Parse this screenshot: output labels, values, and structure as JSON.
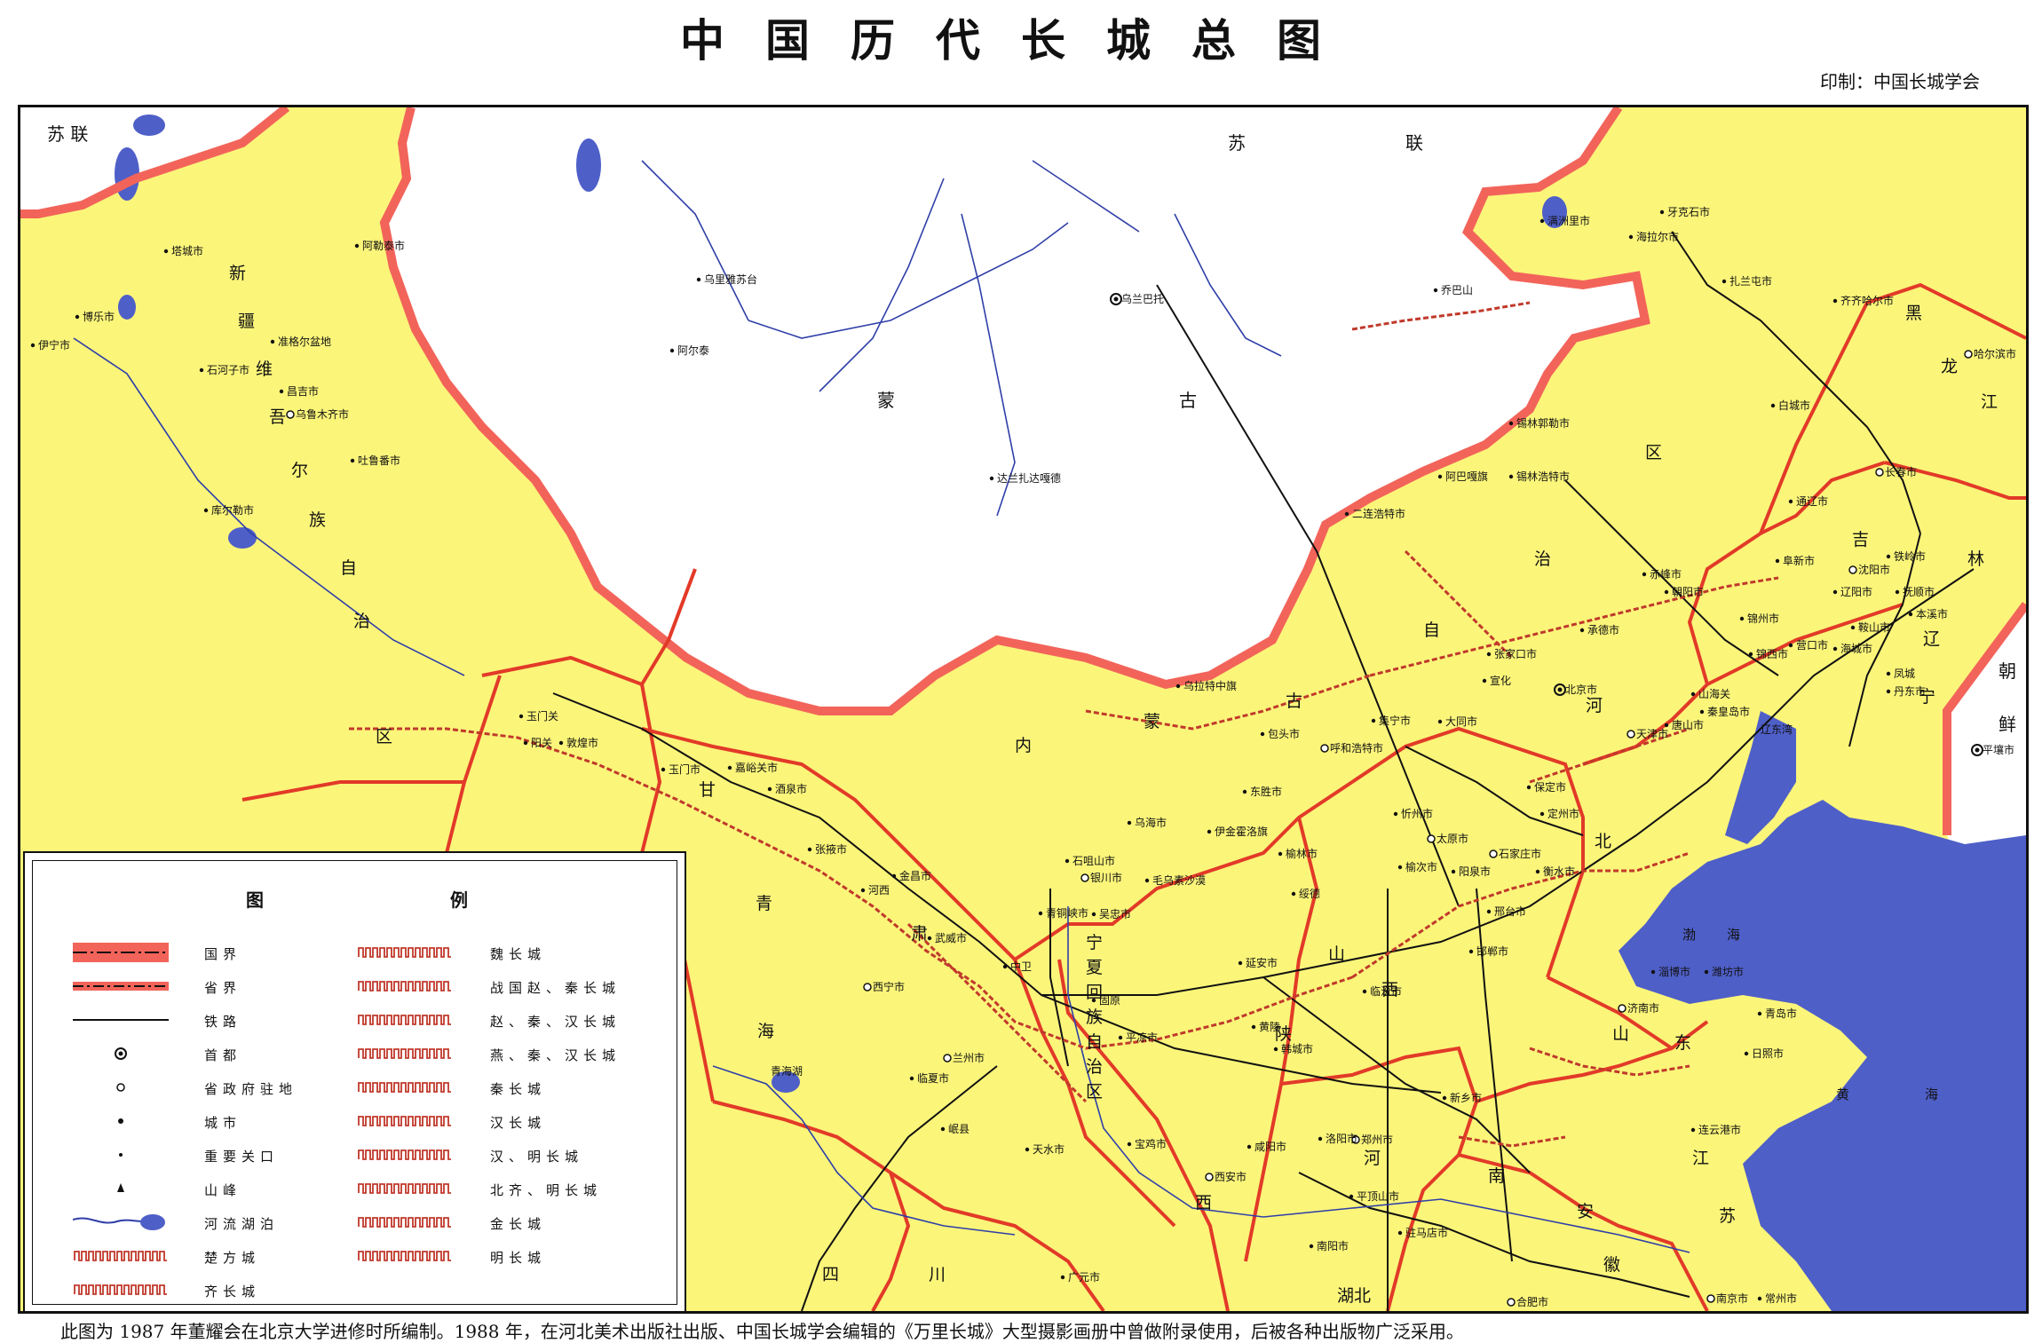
{
  "title": "中国历代长城总图",
  "publisher": "印制：中国长城学会",
  "caption": "此图为 1987 年董耀会在北京大学进修时所编制。1988 年，在河北美术出版社出版、中国长城学会编辑的《万里长城》大型摄影画册中曾做附录使用，后被各种出版物广泛采用。",
  "colors": {
    "china_land": "#fbf57a",
    "foreign_land": "#ffffff",
    "sea": "#4f5fc8",
    "national_border": "#f2645a",
    "province_border": "#e23a28",
    "wall": "#c0392b",
    "rail": "#111111",
    "river": "#2f3fa8"
  },
  "countries": [
    {
      "id": "ussr-west",
      "text": "苏 联"
    },
    {
      "id": "ussr-east-1",
      "text": "苏"
    },
    {
      "id": "ussr-east-2",
      "text": "联"
    },
    {
      "id": "mongolia-1",
      "text": "蒙"
    },
    {
      "id": "mongolia-2",
      "text": "古"
    },
    {
      "id": "korea-1",
      "text": "朝"
    },
    {
      "id": "korea-2",
      "text": "鲜"
    }
  ],
  "regions": [
    {
      "id": "xinjiang-1",
      "text": "新"
    },
    {
      "id": "xinjiang-2",
      "text": "疆"
    },
    {
      "id": "xinjiang-3",
      "text": "维"
    },
    {
      "id": "xinjiang-4",
      "text": "吾"
    },
    {
      "id": "xinjiang-5",
      "text": "尔"
    },
    {
      "id": "xinjiang-6",
      "text": "族"
    },
    {
      "id": "xinjiang-7",
      "text": "自"
    },
    {
      "id": "xinjiang-8",
      "text": "治"
    },
    {
      "id": "xinjiang-9",
      "text": "区"
    },
    {
      "id": "neimeng-1",
      "text": "内"
    },
    {
      "id": "neimeng-2",
      "text": "蒙"
    },
    {
      "id": "neimeng-3",
      "text": "古"
    },
    {
      "id": "neimeng-4",
      "text": "自"
    },
    {
      "id": "neimeng-5",
      "text": "治"
    },
    {
      "id": "neimeng-6",
      "text": "区"
    },
    {
      "id": "gansu-1",
      "text": "甘"
    },
    {
      "id": "gansu-2",
      "text": "肃"
    },
    {
      "id": "qinghai-1",
      "text": "青"
    },
    {
      "id": "qinghai-2",
      "text": "海"
    },
    {
      "id": "ningxia-1",
      "text": "宁"
    },
    {
      "id": "ningxia-2",
      "text": "夏"
    },
    {
      "id": "ningxia-3",
      "text": "回"
    },
    {
      "id": "ningxia-4",
      "text": "族"
    },
    {
      "id": "ningxia-5",
      "text": "自"
    },
    {
      "id": "ningxia-6",
      "text": "治"
    },
    {
      "id": "ningxia-7",
      "text": "区"
    },
    {
      "id": "shaanxi-1",
      "text": "陕"
    },
    {
      "id": "shaanxi-2",
      "text": "西"
    },
    {
      "id": "shanxi-1",
      "text": "山"
    },
    {
      "id": "shanxi-2",
      "text": "西"
    },
    {
      "id": "hebei-1",
      "text": "河"
    },
    {
      "id": "hebei-2",
      "text": "北"
    },
    {
      "id": "henan-1",
      "text": "河"
    },
    {
      "id": "henan-2",
      "text": "南"
    },
    {
      "id": "shandong-1",
      "text": "山"
    },
    {
      "id": "shandong-2",
      "text": "东"
    },
    {
      "id": "jiangsu-1",
      "text": "江"
    },
    {
      "id": "jiangsu-2",
      "text": "苏"
    },
    {
      "id": "anhui-1",
      "text": "安"
    },
    {
      "id": "anhui-2",
      "text": "徽"
    },
    {
      "id": "hubei",
      "text": "湖北"
    },
    {
      "id": "sichuan-1",
      "text": "四"
    },
    {
      "id": "sichuan-2",
      "text": "川"
    },
    {
      "id": "liaoning-1",
      "text": "辽"
    },
    {
      "id": "liaoning-2",
      "text": "宁"
    },
    {
      "id": "jilin-1",
      "text": "吉"
    },
    {
      "id": "jilin-2",
      "text": "林"
    },
    {
      "id": "heilongjiang-1",
      "text": "黑"
    },
    {
      "id": "heilongjiang-2",
      "text": "龙"
    },
    {
      "id": "heilongjiang-3",
      "text": "江"
    }
  ],
  "waters": [
    {
      "id": "bohai-1",
      "text": "渤"
    },
    {
      "id": "bohai-2",
      "text": "海"
    },
    {
      "id": "huanghai-1",
      "text": "黄"
    },
    {
      "id": "huanghai-2",
      "text": "海"
    },
    {
      "id": "liaodong-bay",
      "text": "辽东湾"
    },
    {
      "id": "qinghai-lake",
      "text": "青海湖"
    }
  ],
  "cities": [
    {
      "id": "tacheng",
      "text": "塔城市"
    },
    {
      "id": "aletai",
      "text": "阿勒泰市"
    },
    {
      "id": "bole",
      "text": "博乐市"
    },
    {
      "id": "yining",
      "text": "伊宁市"
    },
    {
      "id": "shihezi",
      "text": "石河子市"
    },
    {
      "id": "changji",
      "text": "昌吉市"
    },
    {
      "id": "urumqi",
      "text": "乌鲁木齐市"
    },
    {
      "id": "junggar",
      "text": "准格尔盆地"
    },
    {
      "id": "tulufan",
      "text": "吐鲁番市"
    },
    {
      "id": "korla",
      "text": "库尔勒市"
    },
    {
      "id": "uliastai",
      "text": "乌里雅苏台"
    },
    {
      "id": "altai-mn",
      "text": "阿尔泰"
    },
    {
      "id": "ulaanbaatar",
      "text": "乌兰巴托"
    },
    {
      "id": "choibalsan",
      "text": "乔巴山"
    },
    {
      "id": "dalanzadgad",
      "text": "达兰扎达嘎德"
    },
    {
      "id": "manzhouli",
      "text": "满洲里市"
    },
    {
      "id": "yakeshi",
      "text": "牙克石市"
    },
    {
      "id": "hailar",
      "text": "海拉尔市"
    },
    {
      "id": "zhalantun",
      "text": "扎兰屯市"
    },
    {
      "id": "qiqihar",
      "text": "齐齐哈尔市"
    },
    {
      "id": "harbin",
      "text": "哈尔滨市"
    },
    {
      "id": "baicheng",
      "text": "白城市"
    },
    {
      "id": "changchun",
      "text": "长春市"
    },
    {
      "id": "tongliao",
      "text": "通辽市"
    },
    {
      "id": "xilinhot",
      "text": "锡林郭勒市"
    },
    {
      "id": "abaga",
      "text": "阿巴嘎旗"
    },
    {
      "id": "xilinhaote",
      "text": "锡林浩特市"
    },
    {
      "id": "erlian",
      "text": "二连浩特市"
    },
    {
      "id": "tieling",
      "text": "铁岭市"
    },
    {
      "id": "shenyang",
      "text": "沈阳市"
    },
    {
      "id": "fushun",
      "text": "抚顺市"
    },
    {
      "id": "benxi",
      "text": "本溪市"
    },
    {
      "id": "liaoyang",
      "text": "辽阳市"
    },
    {
      "id": "anshan",
      "text": "鞍山市"
    },
    {
      "id": "haicheng",
      "text": "海城市"
    },
    {
      "id": "fengcheng",
      "text": "凤城"
    },
    {
      "id": "dandong",
      "text": "丹东市"
    },
    {
      "id": "yingkou",
      "text": "营口市"
    },
    {
      "id": "jinzhou",
      "text": "锦州市"
    },
    {
      "id": "jinxi",
      "text": "锦西市"
    },
    {
      "id": "fuxin",
      "text": "阜新市"
    },
    {
      "id": "chaoyang",
      "text": "朝阳市"
    },
    {
      "id": "chifeng",
      "text": "赤峰市"
    },
    {
      "id": "chengde",
      "text": "承德市"
    },
    {
      "id": "zhangjiakou",
      "text": "张家口市"
    },
    {
      "id": "xuanhua",
      "text": "宣化"
    },
    {
      "id": "beijing",
      "text": "北京市"
    },
    {
      "id": "tianjin",
      "text": "天津市"
    },
    {
      "id": "tangshan",
      "text": "唐山市"
    },
    {
      "id": "qinhuangdao",
      "text": "秦皇岛市"
    },
    {
      "id": "shanhaiguan",
      "text": "山海关"
    },
    {
      "id": "baoding",
      "text": "保定市"
    },
    {
      "id": "dingzhou",
      "text": "定州市"
    },
    {
      "id": "shijiazhuang",
      "text": "石家庄市"
    },
    {
      "id": "hengshui",
      "text": "衡水市"
    },
    {
      "id": "xingtai",
      "text": "邢台市"
    },
    {
      "id": "handan",
      "text": "邯郸市"
    },
    {
      "id": "datong",
      "text": "大同市"
    },
    {
      "id": "xinzhou",
      "text": "忻州市"
    },
    {
      "id": "taiyuan",
      "text": "太原市"
    },
    {
      "id": "yangquan",
      "text": "阳泉市"
    },
    {
      "id": "yuci",
      "text": "榆次市"
    },
    {
      "id": "linfen",
      "text": "临汾市"
    },
    {
      "id": "yulin",
      "text": "榆林市"
    },
    {
      "id": "suide",
      "text": "绥德"
    },
    {
      "id": "yanan",
      "text": "延安市"
    },
    {
      "id": "huangling",
      "text": "黄陵"
    },
    {
      "id": "hancheng",
      "text": "韩城市"
    },
    {
      "id": "xian",
      "text": "西安市"
    },
    {
      "id": "xianyang",
      "text": "咸阳市"
    },
    {
      "id": "baoji",
      "text": "宝鸡市"
    },
    {
      "id": "tianshui",
      "text": "天水市"
    },
    {
      "id": "lanzhou",
      "text": "兰州市"
    },
    {
      "id": "linxia",
      "text": "临夏市"
    },
    {
      "id": "xining",
      "text": "西宁市"
    },
    {
      "id": "wuwei",
      "text": "武威市"
    },
    {
      "id": "jinchang",
      "text": "金昌市"
    },
    {
      "id": "zhangye",
      "text": "张掖市"
    },
    {
      "id": "jiuquan",
      "text": "酒泉市"
    },
    {
      "id": "jiayuguan",
      "text": "嘉峪关市"
    },
    {
      "id": "yumen-city",
      "text": "玉门市"
    },
    {
      "id": "yumenguan",
      "text": "玉门关"
    },
    {
      "id": "yangguan",
      "text": "阳关"
    },
    {
      "id": "dunhuang",
      "text": "敦煌市"
    },
    {
      "id": "yinchuan",
      "text": "银川市"
    },
    {
      "id": "shizuishan",
      "text": "石咀山市"
    },
    {
      "id": "qingtongxia",
      "text": "青铜峡市"
    },
    {
      "id": "wuzhong",
      "text": "吴忠市"
    },
    {
      "id": "guyuan",
      "text": "固原"
    },
    {
      "id": "pingliang",
      "text": "平凉市"
    },
    {
      "id": "wuhai",
      "text": "乌海市"
    },
    {
      "id": "dongsheng",
      "text": "东胜市"
    },
    {
      "id": "baotou",
      "text": "包头市"
    },
    {
      "id": "hohhot",
      "text": "呼和浩特市"
    },
    {
      "id": "jining",
      "text": "集宁市"
    },
    {
      "id": "zhengzhou",
      "text": "郑州市"
    },
    {
      "id": "luoyang",
      "text": "洛阳市"
    },
    {
      "id": "pingdingshan",
      "text": "平顶山市"
    },
    {
      "id": "nanyang",
      "text": "南阳市"
    },
    {
      "id": "zhumadian",
      "text": "驻马店市"
    },
    {
      "id": "xinxiang",
      "text": "新乡市"
    },
    {
      "id": "jinan",
      "text": "济南市"
    },
    {
      "id": "zibo",
      "text": "淄博市"
    },
    {
      "id": "weifang",
      "text": "潍坊市"
    },
    {
      "id": "qingdao",
      "text": "青岛市"
    },
    {
      "id": "rizhao",
      "text": "日照市"
    },
    {
      "id": "lianyungang",
      "text": "连云港市"
    },
    {
      "id": "hefei",
      "text": "合肥市"
    },
    {
      "id": "nanjing",
      "text": "南京市"
    },
    {
      "id": "changzhou",
      "text": "常州市"
    },
    {
      "id": "guangyuan",
      "text": "广元市"
    },
    {
      "id": "pyongyang",
      "text": "平壤市"
    },
    {
      "id": "wulatezhong",
      "text": "乌拉特中旗"
    },
    {
      "id": "yijinhuoluo",
      "text": "伊金霍洛旗"
    },
    {
      "id": "maowusu",
      "text": "毛乌素沙漠"
    },
    {
      "id": "minxian",
      "text": "岷县"
    },
    {
      "id": "zhongwei",
      "text": "中卫"
    },
    {
      "id": "hexi",
      "text": "河西"
    }
  ],
  "legend": {
    "title_left": "图",
    "title_right": "例",
    "left": [
      {
        "label": "国界",
        "symbol": "national-border"
      },
      {
        "label": "省界",
        "symbol": "province-border"
      },
      {
        "label": "铁路",
        "symbol": "railway"
      },
      {
        "label": "首都",
        "symbol": "capital"
      },
      {
        "label": "省政府驻地",
        "symbol": "provincial-capital"
      },
      {
        "label": "城市",
        "symbol": "city"
      },
      {
        "label": "重要关口",
        "symbol": "pass"
      },
      {
        "label": "山峰",
        "symbol": "peak"
      },
      {
        "label": "河流湖泊",
        "symbol": "river-lake"
      },
      {
        "label": "楚方城",
        "symbol": "wall-chu"
      },
      {
        "label": "齐长城",
        "symbol": "wall-qi"
      }
    ],
    "right": [
      {
        "label": "魏长城",
        "symbol": "wall-wei"
      },
      {
        "label": "战国赵、秦长城",
        "symbol": "wall-zhao-qin"
      },
      {
        "label": "赵、秦、汉长城",
        "symbol": "wall-zhao-qin-han"
      },
      {
        "label": "燕、秦、汉长城",
        "symbol": "wall-yan-qin-han"
      },
      {
        "label": "秦长城",
        "symbol": "wall-qin"
      },
      {
        "label": "汉长城",
        "symbol": "wall-han"
      },
      {
        "label": "汉、明长城",
        "symbol": "wall-han-ming"
      },
      {
        "label": "北齐、明长城",
        "symbol": "wall-beiqi-ming"
      },
      {
        "label": "金长城",
        "symbol": "wall-jin"
      },
      {
        "label": "明长城",
        "symbol": "wall-ming"
      }
    ]
  }
}
